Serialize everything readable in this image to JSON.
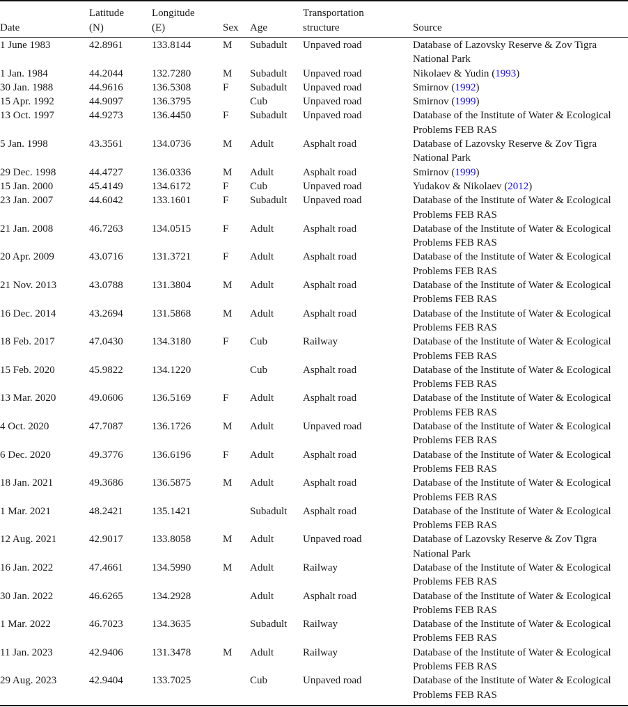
{
  "table": {
    "headers": {
      "date": "Date",
      "latitude": "Latitude (N)",
      "longitude": "Longitude (E)",
      "sex": "Sex",
      "age": "Age",
      "transport": "Transportation structure",
      "source": "Source"
    },
    "link_color": "#1a0dff",
    "rows": [
      {
        "date": "1 June 1983",
        "lat": "42.8961",
        "lon": "133.8144",
        "sex": "M",
        "age": "Subadult",
        "transport": "Unpaved road",
        "source": "Database of Lazovsky Reserve & Zov Tigra National Park",
        "cite": ""
      },
      {
        "date": "1 Jan. 1984",
        "lat": "44.2044",
        "lon": "132.7280",
        "sex": "M",
        "age": "Subadult",
        "transport": "Unpaved road",
        "source": "Nikolaev & Yudin",
        "cite": "1993"
      },
      {
        "date": "30 Jan. 1988",
        "lat": "44.9616",
        "lon": "136.5308",
        "sex": "F",
        "age": "Subadult",
        "transport": "Unpaved road",
        "source": "Smirnov",
        "cite": "1992"
      },
      {
        "date": "15 Apr. 1992",
        "lat": "44.9097",
        "lon": "136.3795",
        "sex": "",
        "age": "Cub",
        "transport": "Unpaved road",
        "source": "Smirnov",
        "cite": "1999"
      },
      {
        "date": "13 Oct. 1997",
        "lat": "44.9273",
        "lon": "136.4450",
        "sex": "F",
        "age": "Subadult",
        "transport": "Unpaved road",
        "source": "Database of the Institute of Water & Ecological Problems FEB RAS",
        "cite": ""
      },
      {
        "date": "5 Jan. 1998",
        "lat": "43.3561",
        "lon": "134.0736",
        "sex": "M",
        "age": "Adult",
        "transport": "Asphalt road",
        "source": "Database of Lazovsky Reserve & Zov Tigra National Park",
        "cite": ""
      },
      {
        "date": "29 Dec. 1998",
        "lat": "44.4727",
        "lon": "136.0336",
        "sex": "M",
        "age": "Adult",
        "transport": "Asphalt road",
        "source": "Smirnov",
        "cite": "1999"
      },
      {
        "date": "15 Jan. 2000",
        "lat": "45.4149",
        "lon": "134.6172",
        "sex": "F",
        "age": "Cub",
        "transport": "Unpaved road",
        "source": "Yudakov & Nikolaev",
        "cite": "2012"
      },
      {
        "date": "23 Jan. 2007",
        "lat": "44.6042",
        "lon": "133.1601",
        "sex": "F",
        "age": "Subadult",
        "transport": "Unpaved road",
        "source": "Database of the Institute of Water & Ecological Problems FEB RAS",
        "cite": ""
      },
      {
        "date": "21 Jan. 2008",
        "lat": "46.7263",
        "lon": "134.0515",
        "sex": "F",
        "age": "Adult",
        "transport": "Asphalt road",
        "source": "Database of the Institute of Water & Ecological Problems FEB RAS",
        "cite": ""
      },
      {
        "date": "20 Apr. 2009",
        "lat": "43.0716",
        "lon": "131.3721",
        "sex": "F",
        "age": "Adult",
        "transport": "Asphalt road",
        "source": "Database of the Institute of Water & Ecological Problems FEB RAS",
        "cite": ""
      },
      {
        "date": "21 Nov. 2013",
        "lat": "43.0788",
        "lon": "131.3804",
        "sex": "M",
        "age": "Adult",
        "transport": "Asphalt road",
        "source": "Database of the Institute of Water & Ecological Problems FEB RAS",
        "cite": ""
      },
      {
        "date": "16 Dec. 2014",
        "lat": "43.2694",
        "lon": "131.5868",
        "sex": "M",
        "age": "Adult",
        "transport": "Asphalt road",
        "source": "Database of the Institute of Water & Ecological Problems FEB RAS",
        "cite": ""
      },
      {
        "date": "18 Feb. 2017",
        "lat": "47.0430",
        "lon": "134.3180",
        "sex": "F",
        "age": "Cub",
        "transport": "Railway",
        "source": "Database of the Institute of Water & Ecological Problems FEB RAS",
        "cite": ""
      },
      {
        "date": "15 Feb. 2020",
        "lat": "45.9822",
        "lon": "134.1220",
        "sex": "",
        "age": "Cub",
        "transport": "Asphalt road",
        "source": "Database of the Institute of Water & Ecological Problems FEB RAS",
        "cite": ""
      },
      {
        "date": "13 Mar. 2020",
        "lat": "49.0606",
        "lon": "136.5169",
        "sex": "F",
        "age": "Adult",
        "transport": "Asphalt road",
        "source": "Database of the Institute of Water & Ecological Problems FEB RAS",
        "cite": ""
      },
      {
        "date": "4 Oct. 2020",
        "lat": "47.7087",
        "lon": "136.1726",
        "sex": "M",
        "age": "Adult",
        "transport": "Unpaved road",
        "source": "Database of the Institute of Water & Ecological Problems FEB RAS",
        "cite": ""
      },
      {
        "date": "6 Dec. 2020",
        "lat": "49.3776",
        "lon": "136.6196",
        "sex": "F",
        "age": "Adult",
        "transport": "Asphalt road",
        "source": "Database of the Institute of Water & Ecological Problems FEB RAS",
        "cite": ""
      },
      {
        "date": "18 Jan. 2021",
        "lat": "49.3686",
        "lon": "136.5875",
        "sex": "M",
        "age": "Adult",
        "transport": "Asphalt road",
        "source": "Database of the Institute of Water & Ecological Problems FEB RAS",
        "cite": ""
      },
      {
        "date": "1 Mar. 2021",
        "lat": "48.2421",
        "lon": "135.1421",
        "sex": "",
        "age": "Subadult",
        "transport": "Asphalt road",
        "source": "Database of the Institute of Water & Ecological Problems FEB RAS",
        "cite": ""
      },
      {
        "date": "12 Aug. 2021",
        "lat": "42.9017",
        "lon": "133.8058",
        "sex": "M",
        "age": "Adult",
        "transport": "Unpaved road",
        "source": "Database of Lazovsky Reserve & Zov Tigra National Park",
        "cite": ""
      },
      {
        "date": "16 Jan. 2022",
        "lat": "47.4661",
        "lon": "134.5990",
        "sex": "M",
        "age": "Adult",
        "transport": "Railway",
        "source": "Database of the Institute of Water & Ecological Problems FEB RAS",
        "cite": ""
      },
      {
        "date": "30 Jan. 2022",
        "lat": "46.6265",
        "lon": "134.2928",
        "sex": "",
        "age": "Adult",
        "transport": "Asphalt road",
        "source": "Database of the Institute of Water & Ecological Problems FEB RAS",
        "cite": ""
      },
      {
        "date": "1 Mar. 2022",
        "lat": "46.7023",
        "lon": "134.3635",
        "sex": "",
        "age": "Subadult",
        "transport": "Railway",
        "source": "Database of the Institute of Water & Ecological Problems FEB RAS",
        "cite": ""
      },
      {
        "date": "11 Jan. 2023",
        "lat": "42.9406",
        "lon": "131.3478",
        "sex": "M",
        "age": "Adult",
        "transport": "Railway",
        "source": "Database of the Institute of Water & Ecological Problems FEB RAS",
        "cite": ""
      },
      {
        "date": "29 Aug. 2023",
        "lat": "42.9404",
        "lon": "133.7025",
        "sex": "",
        "age": "Cub",
        "transport": "Unpaved road",
        "source": "Database of the Institute of Water & Ecological Problems FEB RAS",
        "cite": ""
      }
    ]
  }
}
